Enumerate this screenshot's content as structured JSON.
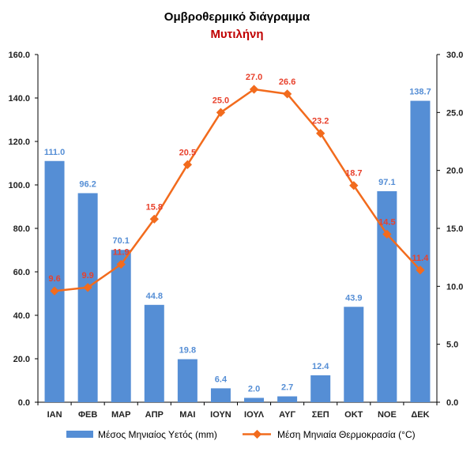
{
  "chart_data": {
    "type": "bar+line",
    "title": "Ομβροθερμικό διάγραμμα",
    "subtitle": "Μυτιλήνη",
    "categories": [
      "ΙΑΝ",
      "ΦΕΒ",
      "ΜΑΡ",
      "ΑΠΡ",
      "ΜΑΙ",
      "ΙΟΥΝ",
      "ΙΟΥΛ",
      "ΑΥΓ",
      "ΣΕΠ",
      "ΟΚΤ",
      "ΝΟΕ",
      "ΔΕΚ"
    ],
    "series": [
      {
        "name": "Μέσος Μηνιαίος Υετός (mm)",
        "type": "bar",
        "axis": "left",
        "color": "#558ED5",
        "label_color": "#558ED5",
        "values": [
          111.0,
          96.2,
          70.1,
          44.8,
          19.8,
          6.4,
          2.0,
          2.7,
          12.4,
          43.9,
          97.1,
          138.7
        ],
        "labels": [
          "111.0",
          "96.2",
          "70.1",
          "44.8",
          "19.8",
          "6.4",
          "2.0",
          "2.7",
          "12.4",
          "43.9",
          "97.1",
          "138.7"
        ]
      },
      {
        "name": "Μέση Μηνιαία Θερμοκρασία (°C)",
        "type": "line",
        "axis": "right",
        "color": "#F26B1D",
        "label_color": "#E8412C",
        "values": [
          9.6,
          9.9,
          11.9,
          15.8,
          20.5,
          25.0,
          27.0,
          26.6,
          23.2,
          18.7,
          14.5,
          11.4
        ],
        "labels": [
          "9.6",
          "9.9",
          "11.9",
          "15.8",
          "20.5",
          "25.0",
          "27.0",
          "26.6",
          "23.2",
          "18.7",
          "14.5",
          "11.4"
        ]
      }
    ],
    "y_left": {
      "range": [
        0,
        160
      ],
      "ticks": [
        "0.0",
        "20.0",
        "40.0",
        "60.0",
        "80.0",
        "100.0",
        "120.0",
        "140.0",
        "160.0"
      ]
    },
    "y_right": {
      "range": [
        0,
        30
      ],
      "ticks": [
        "0.0",
        "5.0",
        "10.0",
        "15.0",
        "20.0",
        "25.0",
        "30.0"
      ]
    },
    "grid": false,
    "legend_position": "bottom",
    "title_color": "#000000",
    "subtitle_color": "#C00000"
  }
}
